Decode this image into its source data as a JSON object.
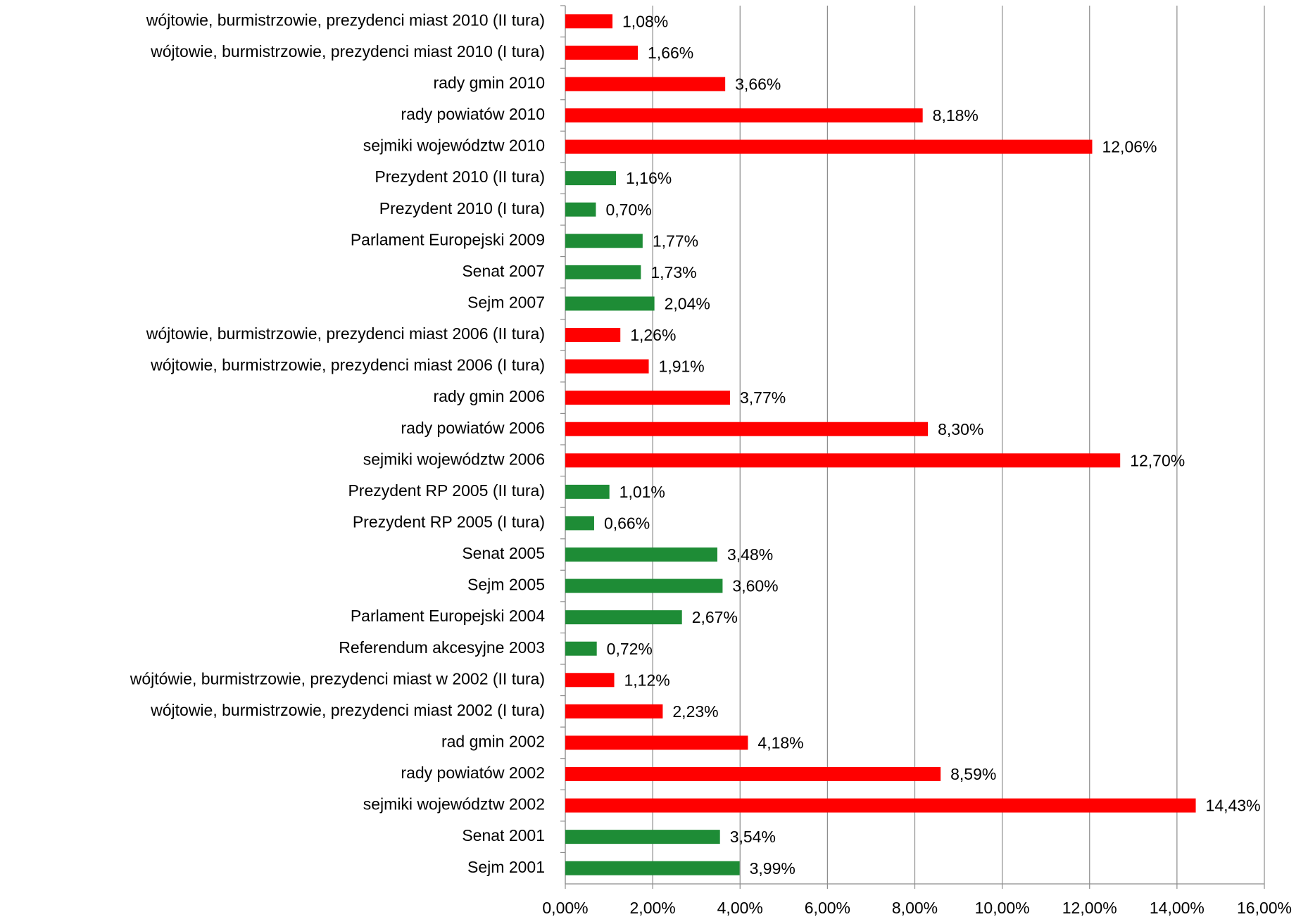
{
  "chart_data": {
    "type": "bar",
    "orientation": "horizontal",
    "categories": [
      "wójtowie, burmistrzowie, prezydenci miast 2010 (II tura)",
      "wójtowie, burmistrzowie, prezydenci miast 2010 (I tura)",
      "rady gmin 2010",
      "rady powiatów 2010",
      "sejmiki województw 2010",
      "Prezydent 2010 (II tura)",
      "Prezydent 2010 (I tura)",
      "Parlament Europejski 2009",
      "Senat 2007",
      "Sejm 2007",
      "wójtowie, burmistrzowie, prezydenci miast 2006 (II tura)",
      "wójtowie, burmistrzowie, prezydenci miast 2006 (I tura)",
      "rady gmin 2006",
      "rady powiatów 2006",
      "sejmiki województw 2006",
      "Prezydent RP 2005 (II tura)",
      "Prezydent RP 2005 (I tura)",
      "Senat 2005",
      "Sejm 2005",
      "Parlament Europejski 2004",
      "Referendum akcesyjne 2003",
      "wójtówie, burmistrzowie, prezydenci miast w 2002 (II tura)",
      "wójtowie, burmistrzowie, prezydenci miast 2002 (I tura)",
      "rad gmin 2002",
      "rady powiatów 2002",
      "sejmiki województw 2002",
      "Senat 2001",
      "Sejm 2001"
    ],
    "values": [
      1.08,
      1.66,
      3.66,
      8.18,
      12.06,
      1.16,
      0.7,
      1.77,
      1.73,
      2.04,
      1.26,
      1.91,
      3.77,
      8.3,
      12.7,
      1.01,
      0.66,
      3.48,
      3.6,
      2.67,
      0.72,
      1.12,
      2.23,
      4.18,
      8.59,
      14.43,
      3.54,
      3.99
    ],
    "value_labels": [
      "1,08%",
      "1,66%",
      "3,66%",
      "8,18%",
      "12,06%",
      "1,16%",
      "0,70%",
      "1,77%",
      "1,73%",
      "2,04%",
      "1,26%",
      "1,91%",
      "3,77%",
      "8,30%",
      "12,70%",
      "1,01%",
      "0,66%",
      "3,48%",
      "3,60%",
      "2,67%",
      "0,72%",
      "1,12%",
      "2,23%",
      "4,18%",
      "8,59%",
      "14,43%",
      "3,54%",
      "3,99%"
    ],
    "colors": [
      "#ff0000",
      "#ff0000",
      "#ff0000",
      "#ff0000",
      "#ff0000",
      "#1e8c36",
      "#1e8c36",
      "#1e8c36",
      "#1e8c36",
      "#1e8c36",
      "#ff0000",
      "#ff0000",
      "#ff0000",
      "#ff0000",
      "#ff0000",
      "#1e8c36",
      "#1e8c36",
      "#1e8c36",
      "#1e8c36",
      "#1e8c36",
      "#1e8c36",
      "#ff0000",
      "#ff0000",
      "#ff0000",
      "#ff0000",
      "#ff0000",
      "#1e8c36",
      "#1e8c36"
    ],
    "xlim": [
      0,
      16
    ],
    "xticks": [
      {
        "value": 0,
        "label": "0,00%"
      },
      {
        "value": 2,
        "label": "2,00%"
      },
      {
        "value": 4,
        "label": "4,00%"
      },
      {
        "value": 6,
        "label": "6,00%"
      },
      {
        "value": 8,
        "label": "8,00%"
      },
      {
        "value": 10,
        "label": "10,00%"
      },
      {
        "value": 12,
        "label": "12,00%"
      },
      {
        "value": 14,
        "label": "14,00%"
      },
      {
        "value": 16,
        "label": "16,00%"
      }
    ],
    "grid": true
  }
}
